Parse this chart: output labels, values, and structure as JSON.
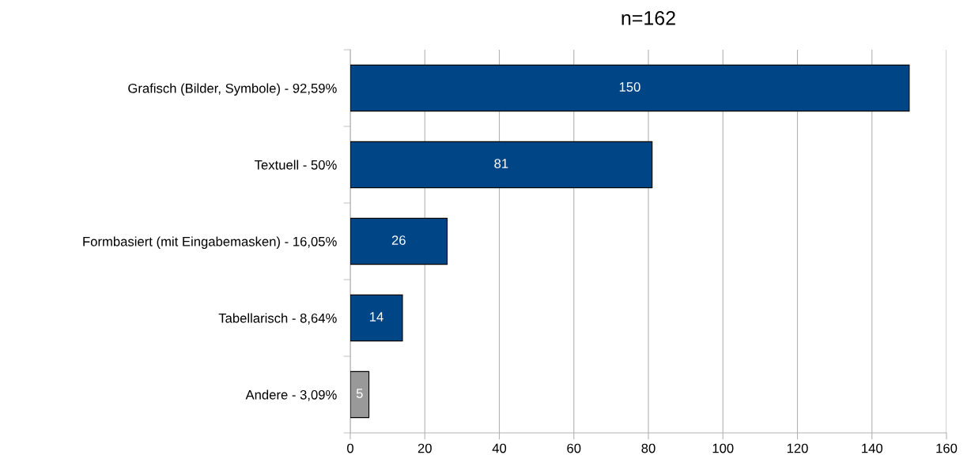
{
  "chart_data": {
    "type": "bar",
    "orientation": "horizontal",
    "title": "n=162",
    "categories": [
      "Grafisch (Bilder, Symbole) - 92,59%",
      "Textuell - 50%",
      "Formbasiert (mit Eingabemasken) - 16,05%",
      "Tabellarisch - 8,64%",
      "Andere - 3,09%"
    ],
    "values": [
      150,
      81,
      26,
      14,
      5
    ],
    "colors": [
      "#004586",
      "#004586",
      "#004586",
      "#004586",
      "#999999"
    ],
    "xlim": [
      0,
      160
    ],
    "xticks": [
      0,
      20,
      40,
      60,
      80,
      100,
      120,
      140,
      160
    ],
    "grid": "x",
    "data_labels": true,
    "legend": false
  }
}
